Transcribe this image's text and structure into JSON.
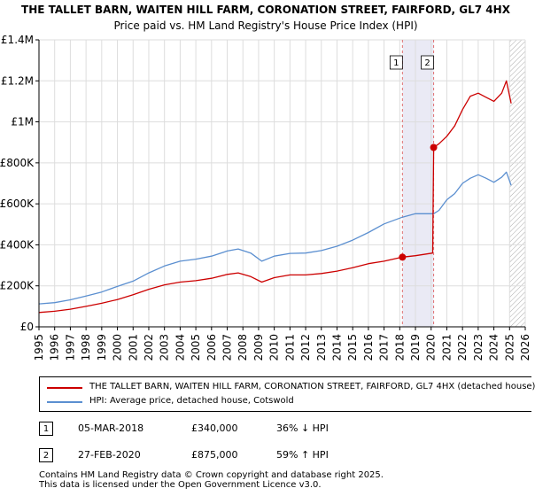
{
  "title": "THE TALLET BARN, WAITEN HILL FARM, CORONATION STREET, FAIRFORD, GL7 4HX",
  "subtitle": "Price paid vs. HM Land Registry's House Price Index (HPI)",
  "colors": {
    "property": "#cc0000",
    "hpi": "#5b8fd0",
    "grid": "#dddddd",
    "shade": "#eaeaf5",
    "marker_line": "#e07070"
  },
  "chart_data": {
    "type": "line",
    "title": "Price paid vs. HM Land Registry's House Price Index (HPI)",
    "xlim": [
      1995,
      2026
    ],
    "ylim": [
      0,
      1400000
    ],
    "y_ticks": [
      {
        "value": 0,
        "label": "£0"
      },
      {
        "value": 200000,
        "label": "£200K"
      },
      {
        "value": 400000,
        "label": "£400K"
      },
      {
        "value": 600000,
        "label": "£600K"
      },
      {
        "value": 800000,
        "label": "£800K"
      },
      {
        "value": 1000000,
        "label": "£1M"
      },
      {
        "value": 1200000,
        "label": "£1.2M"
      },
      {
        "value": 1400000,
        "label": "£1.4M"
      }
    ],
    "x_ticks": [
      "1995",
      "1996",
      "1997",
      "1998",
      "1999",
      "2000",
      "2001",
      "2002",
      "2003",
      "2004",
      "2005",
      "2006",
      "2007",
      "2008",
      "2009",
      "2010",
      "2011",
      "2012",
      "2013",
      "2014",
      "2015",
      "2016",
      "2017",
      "2018",
      "2019",
      "2020",
      "2021",
      "2022",
      "2023",
      "2024",
      "2025",
      "2026"
    ],
    "shaded_range": [
      2018.17,
      2020.16
    ],
    "hatched_from": 2025.0,
    "series": [
      {
        "name": "THE TALLET BARN, WAITEN HILL FARM, CORONATION STREET, FAIRFORD, GL7 4HX (detached house)",
        "color": "#cc0000",
        "points": [
          [
            1995.0,
            70000
          ],
          [
            1996.0,
            76000
          ],
          [
            1997.0,
            86000
          ],
          [
            1998.0,
            100000
          ],
          [
            1999.0,
            115000
          ],
          [
            2000.0,
            133000
          ],
          [
            2001.0,
            157000
          ],
          [
            2002.0,
            183000
          ],
          [
            2003.0,
            205000
          ],
          [
            2004.0,
            218000
          ],
          [
            2005.0,
            225000
          ],
          [
            2006.0,
            237000
          ],
          [
            2007.0,
            256000
          ],
          [
            2007.7,
            263000
          ],
          [
            2008.5,
            245000
          ],
          [
            2009.2,
            218000
          ],
          [
            2010.0,
            240000
          ],
          [
            2011.0,
            253000
          ],
          [
            2012.0,
            253000
          ],
          [
            2013.0,
            260000
          ],
          [
            2014.0,
            272000
          ],
          [
            2015.0,
            288000
          ],
          [
            2016.0,
            308000
          ],
          [
            2017.0,
            320000
          ],
          [
            2018.17,
            340000
          ],
          [
            2019.0,
            347000
          ],
          [
            2020.1,
            360000
          ],
          [
            2020.16,
            875000
          ],
          [
            2020.5,
            893000
          ],
          [
            2021.0,
            930000
          ],
          [
            2021.5,
            980000
          ],
          [
            2022.0,
            1060000
          ],
          [
            2022.5,
            1125000
          ],
          [
            2023.0,
            1140000
          ],
          [
            2023.5,
            1120000
          ],
          [
            2024.0,
            1100000
          ],
          [
            2024.5,
            1140000
          ],
          [
            2024.8,
            1200000
          ],
          [
            2025.1,
            1090000
          ]
        ]
      },
      {
        "name": "HPI: Average price, detached house, Cotswold",
        "color": "#5b8fd0",
        "points": [
          [
            1995.0,
            112000
          ],
          [
            1996.0,
            118000
          ],
          [
            1997.0,
            132000
          ],
          [
            1998.0,
            150000
          ],
          [
            1999.0,
            170000
          ],
          [
            2000.0,
            197000
          ],
          [
            2001.0,
            223000
          ],
          [
            2002.0,
            263000
          ],
          [
            2003.0,
            297000
          ],
          [
            2004.0,
            320000
          ],
          [
            2005.0,
            330000
          ],
          [
            2006.0,
            345000
          ],
          [
            2007.0,
            370000
          ],
          [
            2007.7,
            380000
          ],
          [
            2008.5,
            360000
          ],
          [
            2009.2,
            320000
          ],
          [
            2010.0,
            345000
          ],
          [
            2011.0,
            358000
          ],
          [
            2012.0,
            360000
          ],
          [
            2013.0,
            372000
          ],
          [
            2014.0,
            393000
          ],
          [
            2015.0,
            423000
          ],
          [
            2016.0,
            460000
          ],
          [
            2017.0,
            502000
          ],
          [
            2018.17,
            535000
          ],
          [
            2019.0,
            552000
          ],
          [
            2020.16,
            552000
          ],
          [
            2020.5,
            568000
          ],
          [
            2021.0,
            620000
          ],
          [
            2021.5,
            650000
          ],
          [
            2022.0,
            700000
          ],
          [
            2022.5,
            725000
          ],
          [
            2023.0,
            742000
          ],
          [
            2023.5,
            725000
          ],
          [
            2024.0,
            705000
          ],
          [
            2024.5,
            730000
          ],
          [
            2024.8,
            755000
          ],
          [
            2025.1,
            690000
          ]
        ]
      }
    ],
    "annotations": [
      {
        "id": "1",
        "x": 2018.17,
        "y": 340000
      },
      {
        "id": "2",
        "x": 2020.16,
        "y": 875000
      }
    ]
  },
  "legend": {
    "property_label": "THE TALLET BARN, WAITEN HILL FARM, CORONATION STREET, FAIRFORD, GL7 4HX (detached house)",
    "hpi_label": "HPI: Average price, detached house, Cotswold"
  },
  "sales": [
    {
      "id": "1",
      "date": "05-MAR-2018",
      "price": "£340,000",
      "hpi": "36% ↓ HPI"
    },
    {
      "id": "2",
      "date": "27-FEB-2020",
      "price": "£875,000",
      "hpi": "59% ↑ HPI"
    }
  ],
  "footer": {
    "line1": "Contains HM Land Registry data © Crown copyright and database right 2025.",
    "line2": "This data is licensed under the Open Government Licence v3.0."
  }
}
